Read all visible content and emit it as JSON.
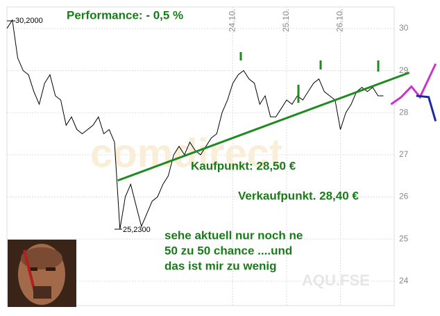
{
  "chart_data": {
    "type": "line",
    "title": "Performance: - 0,5 %",
    "watermark": "comdirect",
    "symbol": "AQU.FSE",
    "annotations": [
      "Kaufpunkt: 28,50 €",
      "Verkaufpunkt. 28,40 €",
      "sehe aktuell nur noch ne",
      "50 zu 50 chance ....und",
      "das ist mir zu wenig"
    ],
    "max_label": "30,2000",
    "min_label": "25,2300",
    "xlim": [
      0,
      80
    ],
    "xticks": [
      {
        "value": 42,
        "label": "24.10."
      },
      {
        "value": 52,
        "label": "25.10."
      },
      {
        "value": 62,
        "label": "26.10."
      }
    ],
    "ylim": [
      23.42,
      30.51
    ],
    "yticks": [
      24,
      25,
      26,
      27,
      28,
      29,
      30
    ],
    "grid": true,
    "series": [
      {
        "color": "#000000",
        "x": [
          0,
          1,
          2,
          3,
          4,
          5,
          6,
          7,
          8,
          9,
          10,
          11,
          12,
          13,
          14,
          15,
          16,
          17,
          18,
          19,
          20,
          21,
          22,
          23,
          24,
          25,
          26,
          27,
          28,
          29,
          30,
          31,
          32,
          33,
          34,
          35,
          36,
          37,
          38,
          39,
          40,
          41,
          42,
          43,
          44,
          45,
          46,
          47,
          48,
          49,
          50,
          51,
          52,
          53,
          54,
          55,
          56,
          57,
          58,
          59,
          60,
          61,
          62,
          63,
          64,
          65,
          66,
          67,
          68,
          69,
          70
        ],
        "values": [
          30.0,
          30.2,
          29.3,
          29.0,
          28.9,
          28.5,
          28.2,
          28.7,
          28.9,
          28.4,
          28.3,
          27.7,
          27.9,
          27.6,
          27.5,
          27.6,
          27.7,
          27.9,
          27.5,
          27.6,
          27.3,
          25.23,
          26.0,
          26.3,
          25.8,
          25.3,
          25.6,
          25.9,
          26.0,
          26.3,
          26.5,
          27.0,
          27.2,
          27.0,
          27.3,
          27.1,
          27.0,
          27.2,
          27.4,
          27.5,
          28.0,
          28.3,
          28.7,
          28.9,
          29.0,
          28.8,
          28.7,
          28.2,
          28.4,
          27.9,
          27.9,
          28.1,
          28.3,
          28.2,
          28.4,
          28.3,
          28.5,
          28.7,
          28.8,
          28.5,
          28.4,
          28.3,
          27.6,
          28.0,
          28.2,
          28.5,
          28.6,
          28.5,
          28.6,
          28.4,
          28.4
        ]
      },
      {
        "color": "#1f8a1f",
        "x": [
          20.6,
          74.8
        ],
        "values": [
          26.39,
          28.95
        ]
      },
      {
        "color": "#cc33cc",
        "x": [
          71.4,
          73.3,
          75.2,
          76.8,
          79.7
        ],
        "values": [
          28.2,
          28.37,
          28.62,
          28.37,
          29.16
        ]
      },
      {
        "color": "#1a2aa0",
        "x": [
          76.1,
          78.4,
          79.7
        ],
        "values": [
          28.4,
          28.37,
          27.8
        ]
      }
    ]
  }
}
